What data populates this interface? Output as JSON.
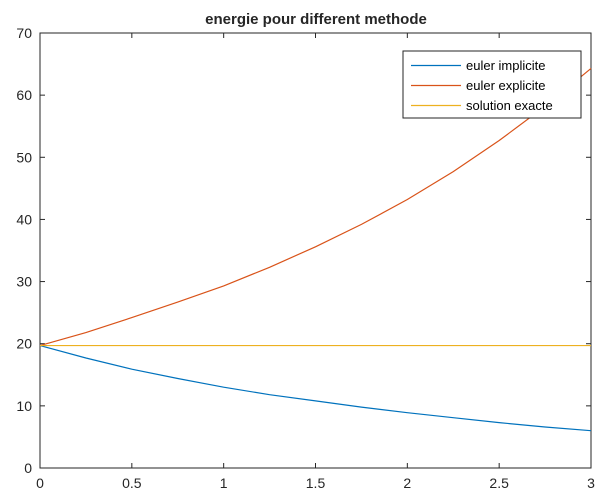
{
  "chart_data": {
    "type": "line",
    "title": "energie pour different methode",
    "xlabel": "",
    "ylabel": "",
    "xlim": [
      0,
      3
    ],
    "ylim": [
      0,
      70
    ],
    "xticks": [
      0,
      0.5,
      1,
      1.5,
      2,
      2.5,
      3
    ],
    "xtick_labels": [
      "0",
      "0.5",
      "1",
      "1.5",
      "2",
      "2.5",
      "3"
    ],
    "yticks": [
      0,
      10,
      20,
      30,
      40,
      50,
      60,
      70
    ],
    "ytick_labels": [
      "0",
      "10",
      "20",
      "30",
      "40",
      "50",
      "60",
      "70"
    ],
    "grid": false,
    "legend_position": "top-right",
    "series": [
      {
        "name": "euler implicite",
        "color": "#0072BD",
        "x": [
          0,
          0.25,
          0.5,
          0.75,
          1,
          1.25,
          1.5,
          1.75,
          2,
          2.25,
          2.5,
          2.75,
          3
        ],
        "y": [
          19.7,
          17.7,
          15.9,
          14.4,
          13.0,
          11.8,
          10.8,
          9.8,
          8.9,
          8.1,
          7.3,
          6.6,
          6.0
        ]
      },
      {
        "name": "euler explicite",
        "color": "#D95319",
        "x": [
          0,
          0.25,
          0.5,
          0.75,
          1,
          1.25,
          1.5,
          1.75,
          2,
          2.25,
          2.5,
          2.75,
          3
        ],
        "y": [
          19.7,
          21.8,
          24.2,
          26.7,
          29.3,
          32.3,
          35.6,
          39.2,
          43.2,
          47.7,
          52.7,
          58.2,
          64.3
        ]
      },
      {
        "name": "solution exacte",
        "color": "#EDB120",
        "x": [
          0,
          0.5,
          1,
          1.5,
          2,
          2.5,
          3
        ],
        "y": [
          19.7,
          19.7,
          19.7,
          19.7,
          19.7,
          19.7,
          19.7
        ]
      }
    ]
  }
}
